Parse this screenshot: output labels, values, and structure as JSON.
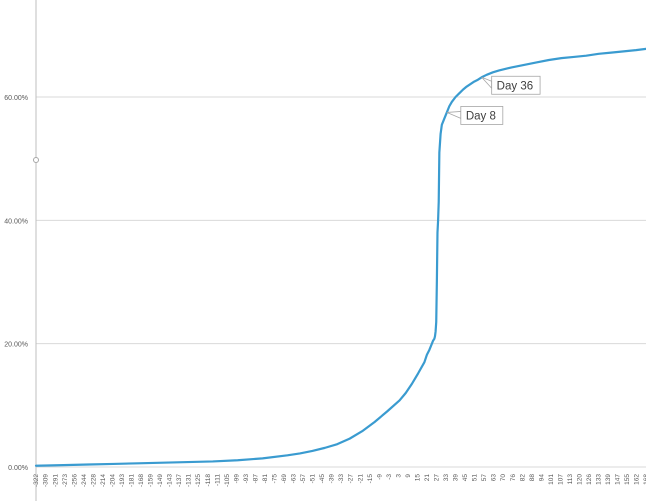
{
  "chart_data": {
    "type": "line",
    "title": "",
    "xlabel": "",
    "ylabel": "",
    "x_range": [
      -322,
      168
    ],
    "ylim": [
      0,
      0.7
    ],
    "grid": true,
    "legend": "none",
    "colors": {
      "line": "#3a9bd0",
      "grid": "#d9d9d9",
      "axis": "#bfbfbf"
    },
    "y_ticks": [
      {
        "value": 0.0,
        "label": "0.00%"
      },
      {
        "value": 0.2,
        "label": "20.00%"
      },
      {
        "value": 0.4,
        "label": "40.00%"
      },
      {
        "value": 0.6,
        "label": "60.00%"
      }
    ],
    "x_tick_labels": [
      "-322",
      "-309",
      "-291",
      "-273",
      "-256",
      "-244",
      "-228",
      "-214",
      "-204",
      "-193",
      "-181",
      "-168",
      "-159",
      "-149",
      "-143",
      "-137",
      "-131",
      "-125",
      "-118",
      "-111",
      "-105",
      "-99",
      "-93",
      "-87",
      "-81",
      "-75",
      "-69",
      "-63",
      "-57",
      "-51",
      "-45",
      "-39",
      "-33",
      "-27",
      "-21",
      "-15",
      "-9",
      "-3",
      "3",
      "9",
      "15",
      "21",
      "27",
      "33",
      "39",
      "45",
      "51",
      "57",
      "63",
      "70",
      "76",
      "82",
      "88",
      "94",
      "101",
      "107",
      "113",
      "120",
      "126",
      "133",
      "139",
      "147",
      "155",
      "162",
      "168"
    ],
    "series": [
      {
        "x": [
          -322,
          -300,
          -280,
          -260,
          -240,
          -220,
          -200,
          -180,
          -160,
          -140,
          -120,
          -110,
          -100,
          -90,
          -80,
          -70,
          -60,
          -50,
          -40,
          -30,
          -25,
          -20,
          -15,
          -10,
          -8,
          -6,
          -4,
          -3,
          -2,
          -1.5,
          -1,
          -0.5,
          0,
          0.5,
          1,
          1.5,
          2,
          3,
          4,
          5,
          6,
          8,
          10,
          12,
          15,
          18,
          21,
          24,
          27,
          30,
          33,
          36,
          40,
          45,
          50,
          60,
          70,
          80,
          90,
          100,
          110,
          120,
          130,
          140,
          150,
          160,
          168
        ],
        "y": [
          0.002,
          0.003,
          0.004,
          0.005,
          0.006,
          0.007,
          0.008,
          0.009,
          0.011,
          0.014,
          0.019,
          0.022,
          0.026,
          0.031,
          0.037,
          0.046,
          0.058,
          0.073,
          0.09,
          0.108,
          0.12,
          0.135,
          0.152,
          0.17,
          0.182,
          0.19,
          0.2,
          0.205,
          0.208,
          0.212,
          0.22,
          0.235,
          0.3,
          0.38,
          0.4,
          0.43,
          0.51,
          0.54,
          0.555,
          0.56,
          0.565,
          0.575,
          0.585,
          0.592,
          0.6,
          0.606,
          0.612,
          0.617,
          0.621,
          0.625,
          0.628,
          0.632,
          0.636,
          0.64,
          0.643,
          0.648,
          0.652,
          0.656,
          0.66,
          0.663,
          0.665,
          0.667,
          0.67,
          0.672,
          0.674,
          0.676,
          0.678
        ]
      }
    ],
    "annotations": [
      {
        "label": "Day 8",
        "x": 8,
        "y": 0.575
      },
      {
        "label": "Day 36",
        "x": 36,
        "y": 0.632
      }
    ]
  }
}
